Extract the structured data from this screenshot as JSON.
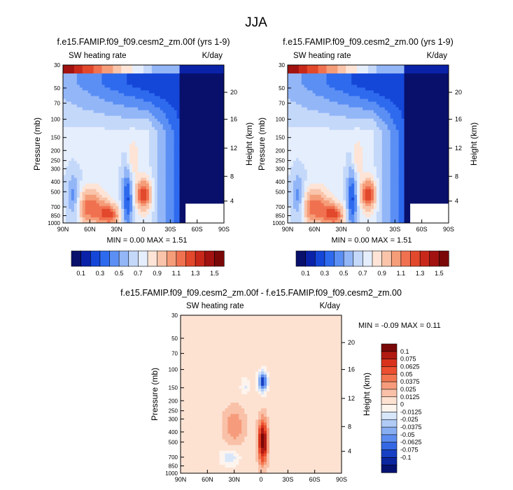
{
  "suptitle": "JJA",
  "chart_data": [
    {
      "type": "heatmap",
      "title": "f.e15.FAMIP.f09_f09.cesm2_zm.00f (yrs 1-9)",
      "left_label": "SW heating rate",
      "right_label": "K/day",
      "ylabel": "Pressure (mb)",
      "ylabel_right": "Height (km)",
      "x_ticks": [
        "90N",
        "60N",
        "30N",
        "0",
        "30S",
        "60S",
        "90S"
      ],
      "y_ticks": [
        "30",
        "50",
        "70",
        "100",
        "150",
        "200",
        "250",
        "300",
        "400",
        "500",
        "700",
        "850",
        "1000"
      ],
      "height_ticks": [
        "20",
        "16",
        "12",
        "8",
        "4"
      ],
      "stats": "MIN =   0.00   MAX =   1.51",
      "min": 0.0,
      "max": 1.51,
      "y_scale": "log",
      "ylim": [
        1000,
        30
      ],
      "colorbar": {
        "orientation": "horizontal",
        "labels": [
          "0.1",
          "0.3",
          "0.5",
          "0.7",
          "0.9",
          "1.1",
          "1.3",
          "1.5"
        ],
        "colors": [
          "#08106b",
          "#0a22a8",
          "#1446d8",
          "#2e6aee",
          "#5b8ff4",
          "#93b6f7",
          "#c4d8fa",
          "#e5eefc",
          "#fde4d6",
          "#f9c4aa",
          "#f59c78",
          "#f07150",
          "#e2482c",
          "#c8281a",
          "#a11210",
          "#7a0808"
        ]
      }
    },
    {
      "type": "heatmap",
      "title": "f.e15.FAMIP.f09_f09.cesm2_zm.00 (yrs 1-9)",
      "left_label": "SW heating rate",
      "right_label": "K/day",
      "ylabel": "Pressure (mb)",
      "ylabel_right": "Height (km)",
      "x_ticks": [
        "90N",
        "60N",
        "30N",
        "0",
        "30S",
        "60S",
        "90S"
      ],
      "y_ticks": [
        "30",
        "50",
        "70",
        "100",
        "150",
        "200",
        "250",
        "300",
        "400",
        "500",
        "700",
        "850",
        "1000"
      ],
      "height_ticks": [
        "20",
        "16",
        "12",
        "8",
        "4"
      ],
      "stats": "MIN =   0.00   MAX =   1.51",
      "min": 0.0,
      "max": 1.51,
      "y_scale": "log",
      "ylim": [
        1000,
        30
      ],
      "colorbar": {
        "orientation": "horizontal",
        "labels": [
          "0.1",
          "0.3",
          "0.5",
          "0.7",
          "0.9",
          "1.1",
          "1.3",
          "1.5"
        ],
        "colors": [
          "#08106b",
          "#0a22a8",
          "#1446d8",
          "#2e6aee",
          "#5b8ff4",
          "#93b6f7",
          "#c4d8fa",
          "#e5eefc",
          "#fde4d6",
          "#f9c4aa",
          "#f59c78",
          "#f07150",
          "#e2482c",
          "#c8281a",
          "#a11210",
          "#7a0808"
        ]
      }
    },
    {
      "type": "heatmap",
      "title": "f.e15.FAMIP.f09_f09.cesm2_zm.00f - f.e15.FAMIP.f09_f09.cesm2_zm.00",
      "left_label": "SW heating rate",
      "right_label": "K/day",
      "ylabel": "Pressure (mb)",
      "ylabel_right": "Height (km)",
      "x_ticks": [
        "90N",
        "60N",
        "30N",
        "0",
        "30S",
        "60S",
        "90S"
      ],
      "y_ticks": [
        "30",
        "50",
        "70",
        "100",
        "150",
        "200",
        "250",
        "300",
        "400",
        "500",
        "700",
        "850",
        "1000"
      ],
      "height_ticks": [
        "20",
        "16",
        "12",
        "8",
        "4"
      ],
      "stats": "MIN =  -0.09   MAX =   0.11",
      "min": -0.09,
      "max": 0.11,
      "y_scale": "log",
      "ylim": [
        1000,
        30
      ],
      "colorbar": {
        "orientation": "vertical",
        "labels": [
          "0.1",
          "0.075",
          "0.0625",
          "0.05",
          "0.0375",
          "0.025",
          "0.0125",
          "0",
          "-0.0125",
          "-0.025",
          "-0.0375",
          "-0.05",
          "-0.0625",
          "-0.075",
          "-0.1"
        ],
        "colors": [
          "#7a0808",
          "#b01a12",
          "#d8321c",
          "#ec5030",
          "#f27750",
          "#f69c7c",
          "#f9c1a8",
          "#fde2d2",
          "#fdf4ee",
          "#d8e6fa",
          "#b0ccf6",
          "#88aef2",
          "#5c8cee",
          "#3468e4",
          "#1840c4",
          "#0c26a0",
          "#061270"
        ]
      }
    }
  ]
}
